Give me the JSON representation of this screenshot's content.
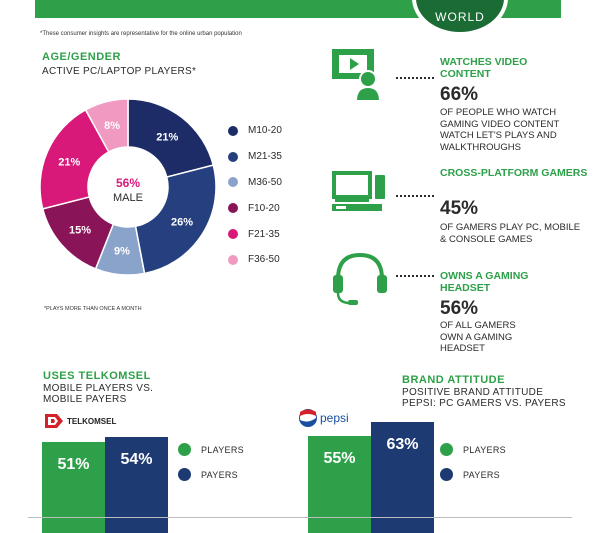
{
  "banner": {
    "world_label": "WORLD"
  },
  "disclaimer": "*These consumer insights are representative for the online urban population",
  "age_gender": {
    "title": "AGE/GENDER",
    "subtitle": "ACTIVE PC/LAPTOP PLAYERS*",
    "center_value": "56%",
    "center_label": "MALE",
    "footnote": "*PLAYS MORE THAN ONCE A MONTH"
  },
  "colors": {
    "green": "#2ea04a",
    "navy_dark": "#1d2c66",
    "navy": "#263f7e",
    "light_blue": "#8aa3cb",
    "plum": "#8a1458",
    "magenta": "#d8197a",
    "pink": "#f09ac2"
  },
  "chart_data": [
    {
      "type": "pie",
      "title": "AGE/GENDER",
      "subtitle": "ACTIVE PC/LAPTOP PLAYERS*",
      "categories": [
        "M10-20",
        "M21-35",
        "M36-50",
        "F10-20",
        "F21-35",
        "F36-50"
      ],
      "values": [
        21,
        26,
        9,
        15,
        21,
        8
      ],
      "labels": [
        "21%",
        "26%",
        "9%",
        "15%",
        "21%",
        "8%"
      ],
      "colors": [
        "#1d2c66",
        "#263f7e",
        "#8aa3cb",
        "#8a1458",
        "#d8197a",
        "#f09ac2"
      ],
      "legend": "right"
    },
    {
      "type": "bar",
      "title": "USES TELKOMSEL",
      "subtitle": "MOBILE PLAYERS VS. MOBILE PAYERS",
      "categories": [
        "PLAYERS",
        "PAYERS"
      ],
      "values": [
        51,
        54
      ],
      "labels": [
        "51%",
        "54%"
      ],
      "colors": [
        "#2ea04a",
        "#1d3a72"
      ],
      "legend": "right"
    },
    {
      "type": "bar",
      "title": "BRAND ATTITUDE",
      "subtitle": "POSITIVE BRAND ATTITUDE PEPSI: PC GAMERS VS. PAYERS",
      "categories": [
        "PLAYERS",
        "PAYERS"
      ],
      "values": [
        55,
        63
      ],
      "labels": [
        "55%",
        "63%"
      ],
      "colors": [
        "#2ea04a",
        "#1d3a72"
      ],
      "legend": "right"
    }
  ],
  "stats": [
    {
      "heading": "WATCHES VIDEO CONTENT",
      "value": "66%",
      "description": "OF PEOPLE WHO WATCH GAMING VIDEO CONTENT WATCH LET'S PLAYS AND WALKTHROUGHS",
      "icon": "video-viewer-icon"
    },
    {
      "heading": "CROSS-PLATFORM GAMERS",
      "value": "45%",
      "description": "OF GAMERS PLAY PC, MOBILE & CONSOLE GAMES",
      "icon": "tv-console-icon"
    },
    {
      "heading": "OWNS A GAMING HEADSET",
      "value": "56%",
      "description": "OF ALL GAMERS OWN A GAMING HEADSET",
      "icon": "headset-icon"
    }
  ],
  "telkomsel": {
    "heading": "USES TELKOMSEL",
    "subtitle_line1": "MOBILE PLAYERS VS.",
    "subtitle_line2": "MOBILE PAYERS",
    "logo_text": "TELKOMSEL"
  },
  "brand": {
    "heading": "BRAND ATTITUDE",
    "subtitle_line1": "POSITIVE BRAND ATTITUDE",
    "subtitle_line2": "PEPSI: PC GAMERS VS. PAYERS",
    "logo_text": "pepsi"
  },
  "bar_legend": {
    "players": "PLAYERS",
    "payers": "PAYERS"
  }
}
